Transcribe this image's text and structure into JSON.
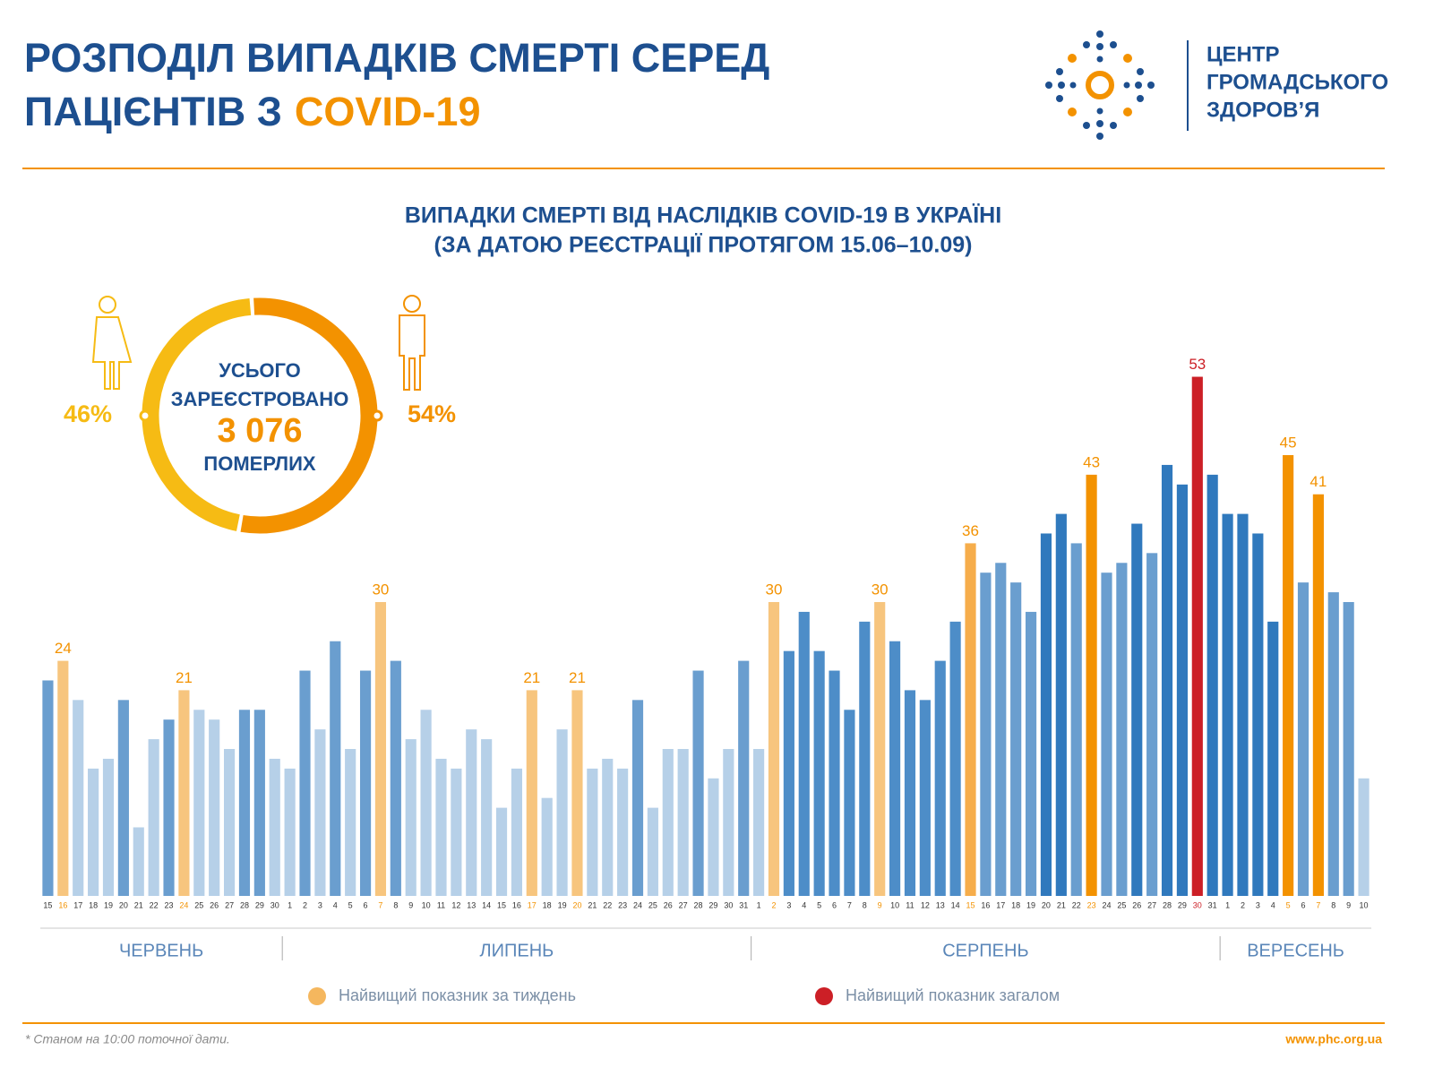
{
  "header": {
    "title_line1": "РОЗПОДІЛ ВИПАДКІВ СМЕРТІ СЕРЕД",
    "title_line2": "ПАЦІЄНТІВ З",
    "title_highlight": "COVID-19",
    "logo_lines": [
      "ЦЕНТР",
      "ГРОМАДСЬКОГО",
      "ЗДОРОВ’Я"
    ]
  },
  "chart_data": [
    {
      "type": "bar",
      "title": "ВИПАДКИ СМЕРТІ ВІД НАСЛІДКІВ COVID-19 В УКРАЇНІ",
      "subtitle": "(ЗА ДАТОЮ РЕЄСТРАЦІЇ ПРОТЯГОМ 15.06–10.09)",
      "categories": [
        "15",
        "16",
        "17",
        "18",
        "19",
        "20",
        "21",
        "22",
        "23",
        "24",
        "25",
        "26",
        "27",
        "28",
        "29",
        "30",
        "1",
        "2",
        "3",
        "4",
        "5",
        "6",
        "7",
        "8",
        "9",
        "10",
        "11",
        "12",
        "13",
        "14",
        "15",
        "16",
        "17",
        "18",
        "19",
        "20",
        "21",
        "22",
        "23",
        "24",
        "25",
        "26",
        "27",
        "28",
        "29",
        "30",
        "31",
        "1",
        "2",
        "3",
        "4",
        "5",
        "6",
        "7",
        "8",
        "9",
        "10",
        "11",
        "12",
        "13",
        "14",
        "15",
        "16",
        "17",
        "18",
        "19",
        "20",
        "21",
        "22",
        "23",
        "24",
        "25",
        "26",
        "27",
        "28",
        "29",
        "30",
        "31",
        "1",
        "2",
        "3",
        "4",
        "5",
        "6",
        "7",
        "8",
        "9",
        "10"
      ],
      "months": [
        "ЧЕРВЕНЬ",
        "ЛИПЕНЬ",
        "СЕРПЕНЬ",
        "ВЕРЕСЕНЬ"
      ],
      "values": [
        22,
        24,
        20,
        13,
        14,
        20,
        7,
        16,
        18,
        21,
        19,
        18,
        15,
        19,
        19,
        14,
        13,
        23,
        17,
        26,
        15,
        23,
        30,
        24,
        16,
        19,
        14,
        13,
        17,
        16,
        9,
        13,
        21,
        10,
        17,
        21,
        13,
        14,
        13,
        20,
        9,
        15,
        15,
        23,
        12,
        15,
        24,
        15,
        30,
        25,
        29,
        25,
        23,
        19,
        28,
        30,
        26,
        21,
        20,
        24,
        28,
        36,
        33,
        34,
        32,
        29,
        37,
        39,
        36,
        43,
        33,
        34,
        38,
        35,
        44,
        42,
        53,
        43,
        39,
        39,
        37,
        28,
        45,
        32,
        41,
        31,
        30,
        12
      ],
      "colors": [
        "#6a9ecf",
        "#f7c57e",
        "#b6d0e8",
        "#b6d0e8",
        "#b6d0e8",
        "#6a9ecf",
        "#b6d0e8",
        "#b6d0e8",
        "#6a9ecf",
        "#f7c57e",
        "#b6d0e8",
        "#b6d0e8",
        "#b6d0e8",
        "#6a9ecf",
        "#6a9ecf",
        "#b6d0e8",
        "#b6d0e8",
        "#6a9ecf",
        "#b6d0e8",
        "#6a9ecf",
        "#b6d0e8",
        "#6a9ecf",
        "#f7c57e",
        "#6a9ecf",
        "#b6d0e8",
        "#b6d0e8",
        "#b6d0e8",
        "#b6d0e8",
        "#b6d0e8",
        "#b6d0e8",
        "#b6d0e8",
        "#b6d0e8",
        "#f7c57e",
        "#b6d0e8",
        "#b6d0e8",
        "#f7c57e",
        "#b6d0e8",
        "#b6d0e8",
        "#b6d0e8",
        "#6a9ecf",
        "#b6d0e8",
        "#b6d0e8",
        "#b6d0e8",
        "#6a9ecf",
        "#b6d0e8",
        "#b6d0e8",
        "#6a9ecf",
        "#b6d0e8",
        "#f7c57e",
        "#4d8dc8",
        "#4d8dc8",
        "#4d8dc8",
        "#4d8dc8",
        "#4d8dc8",
        "#4d8dc8",
        "#f7c57e",
        "#4d8dc8",
        "#4d8dc8",
        "#4d8dc8",
        "#4d8dc8",
        "#4d8dc8",
        "#f6ad4b",
        "#6a9ecf",
        "#6a9ecf",
        "#6a9ecf",
        "#6a9ecf",
        "#3079bd",
        "#3079bd",
        "#6a9ecf",
        "#f39200",
        "#6a9ecf",
        "#6a9ecf",
        "#3079bd",
        "#6a9ecf",
        "#3079bd",
        "#3079bd",
        "#cc1f26",
        "#3079bd",
        "#3079bd",
        "#3079bd",
        "#3079bd",
        "#3079bd",
        "#f39200",
        "#6a9ecf",
        "#f39200",
        "#6a9ecf",
        "#6a9ecf",
        "#b6d0e8"
      ],
      "highlight": [
        null,
        "week",
        null,
        null,
        null,
        null,
        null,
        null,
        null,
        "week",
        null,
        null,
        null,
        null,
        null,
        null,
        null,
        null,
        null,
        null,
        null,
        null,
        "week",
        null,
        null,
        null,
        null,
        null,
        null,
        null,
        null,
        null,
        "week",
        null,
        null,
        "week",
        null,
        null,
        null,
        null,
        null,
        null,
        null,
        null,
        null,
        null,
        null,
        null,
        "week",
        null,
        null,
        null,
        null,
        null,
        null,
        "week",
        null,
        null,
        null,
        null,
        null,
        "week",
        null,
        null,
        null,
        null,
        null,
        null,
        null,
        "week",
        null,
        null,
        null,
        null,
        null,
        null,
        "overall",
        null,
        null,
        null,
        null,
        null,
        "week",
        null,
        "week",
        null,
        null,
        null
      ],
      "ylim": [
        0,
        60
      ],
      "legend": [
        {
          "name": "Найвищий показник за тиждень",
          "color": "#f5b75e",
          "key": "week"
        },
        {
          "name": "Найвищий показник загалом",
          "color": "#cc1f26",
          "key": "overall"
        }
      ]
    },
    {
      "type": "donut",
      "values": [
        46,
        54
      ],
      "value_labels": [
        "46%",
        "54%"
      ],
      "colors": [
        "#f6bb14",
        "#f39200"
      ],
      "center_lines": [
        "УСЬОГО",
        "ЗАРЕЄСТРОВАНО"
      ],
      "total": {
        "value": 3076,
        "label": "3 076"
      },
      "center_footer": "ПОМЕРЛИХ"
    }
  ],
  "footer": {
    "note": "* Станом на 10:00 поточної дати.",
    "url": "www.phc.org.ua"
  }
}
